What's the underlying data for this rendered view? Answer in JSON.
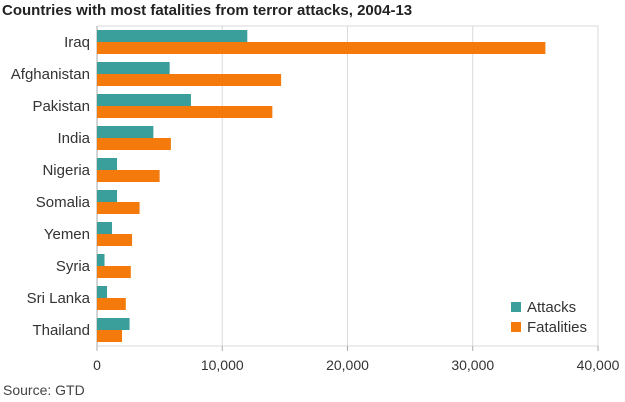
{
  "colors": {
    "attacks": "#3a9e9b",
    "fatalities": "#f47a0c",
    "grid": "#d9d9d9",
    "axis": "#aaaaaa"
  },
  "source": "Source: GTD",
  "chart_data": {
    "type": "bar",
    "orientation": "horizontal",
    "title": "Countries with most fatalities from terror attacks, 2004-13",
    "categories": [
      "Iraq",
      "Afghanistan",
      "Pakistan",
      "India",
      "Nigeria",
      "Somalia",
      "Yemen",
      "Syria",
      "Sri Lanka",
      "Thailand"
    ],
    "series": [
      {
        "name": "Attacks",
        "color": "#3a9e9b",
        "values": [
          12000,
          5800,
          7500,
          4500,
          1600,
          1600,
          1200,
          600,
          800,
          2600
        ]
      },
      {
        "name": "Fatalities",
        "color": "#f47a0c",
        "values": [
          35800,
          14700,
          14000,
          5900,
          5000,
          3400,
          2800,
          2700,
          2300,
          2000
        ]
      }
    ],
    "xlim": [
      0,
      40000
    ],
    "xticks": [
      "0",
      "10,000",
      "20,000",
      "30,000",
      "40,000"
    ],
    "grid": true,
    "legend": "bottom-right"
  }
}
